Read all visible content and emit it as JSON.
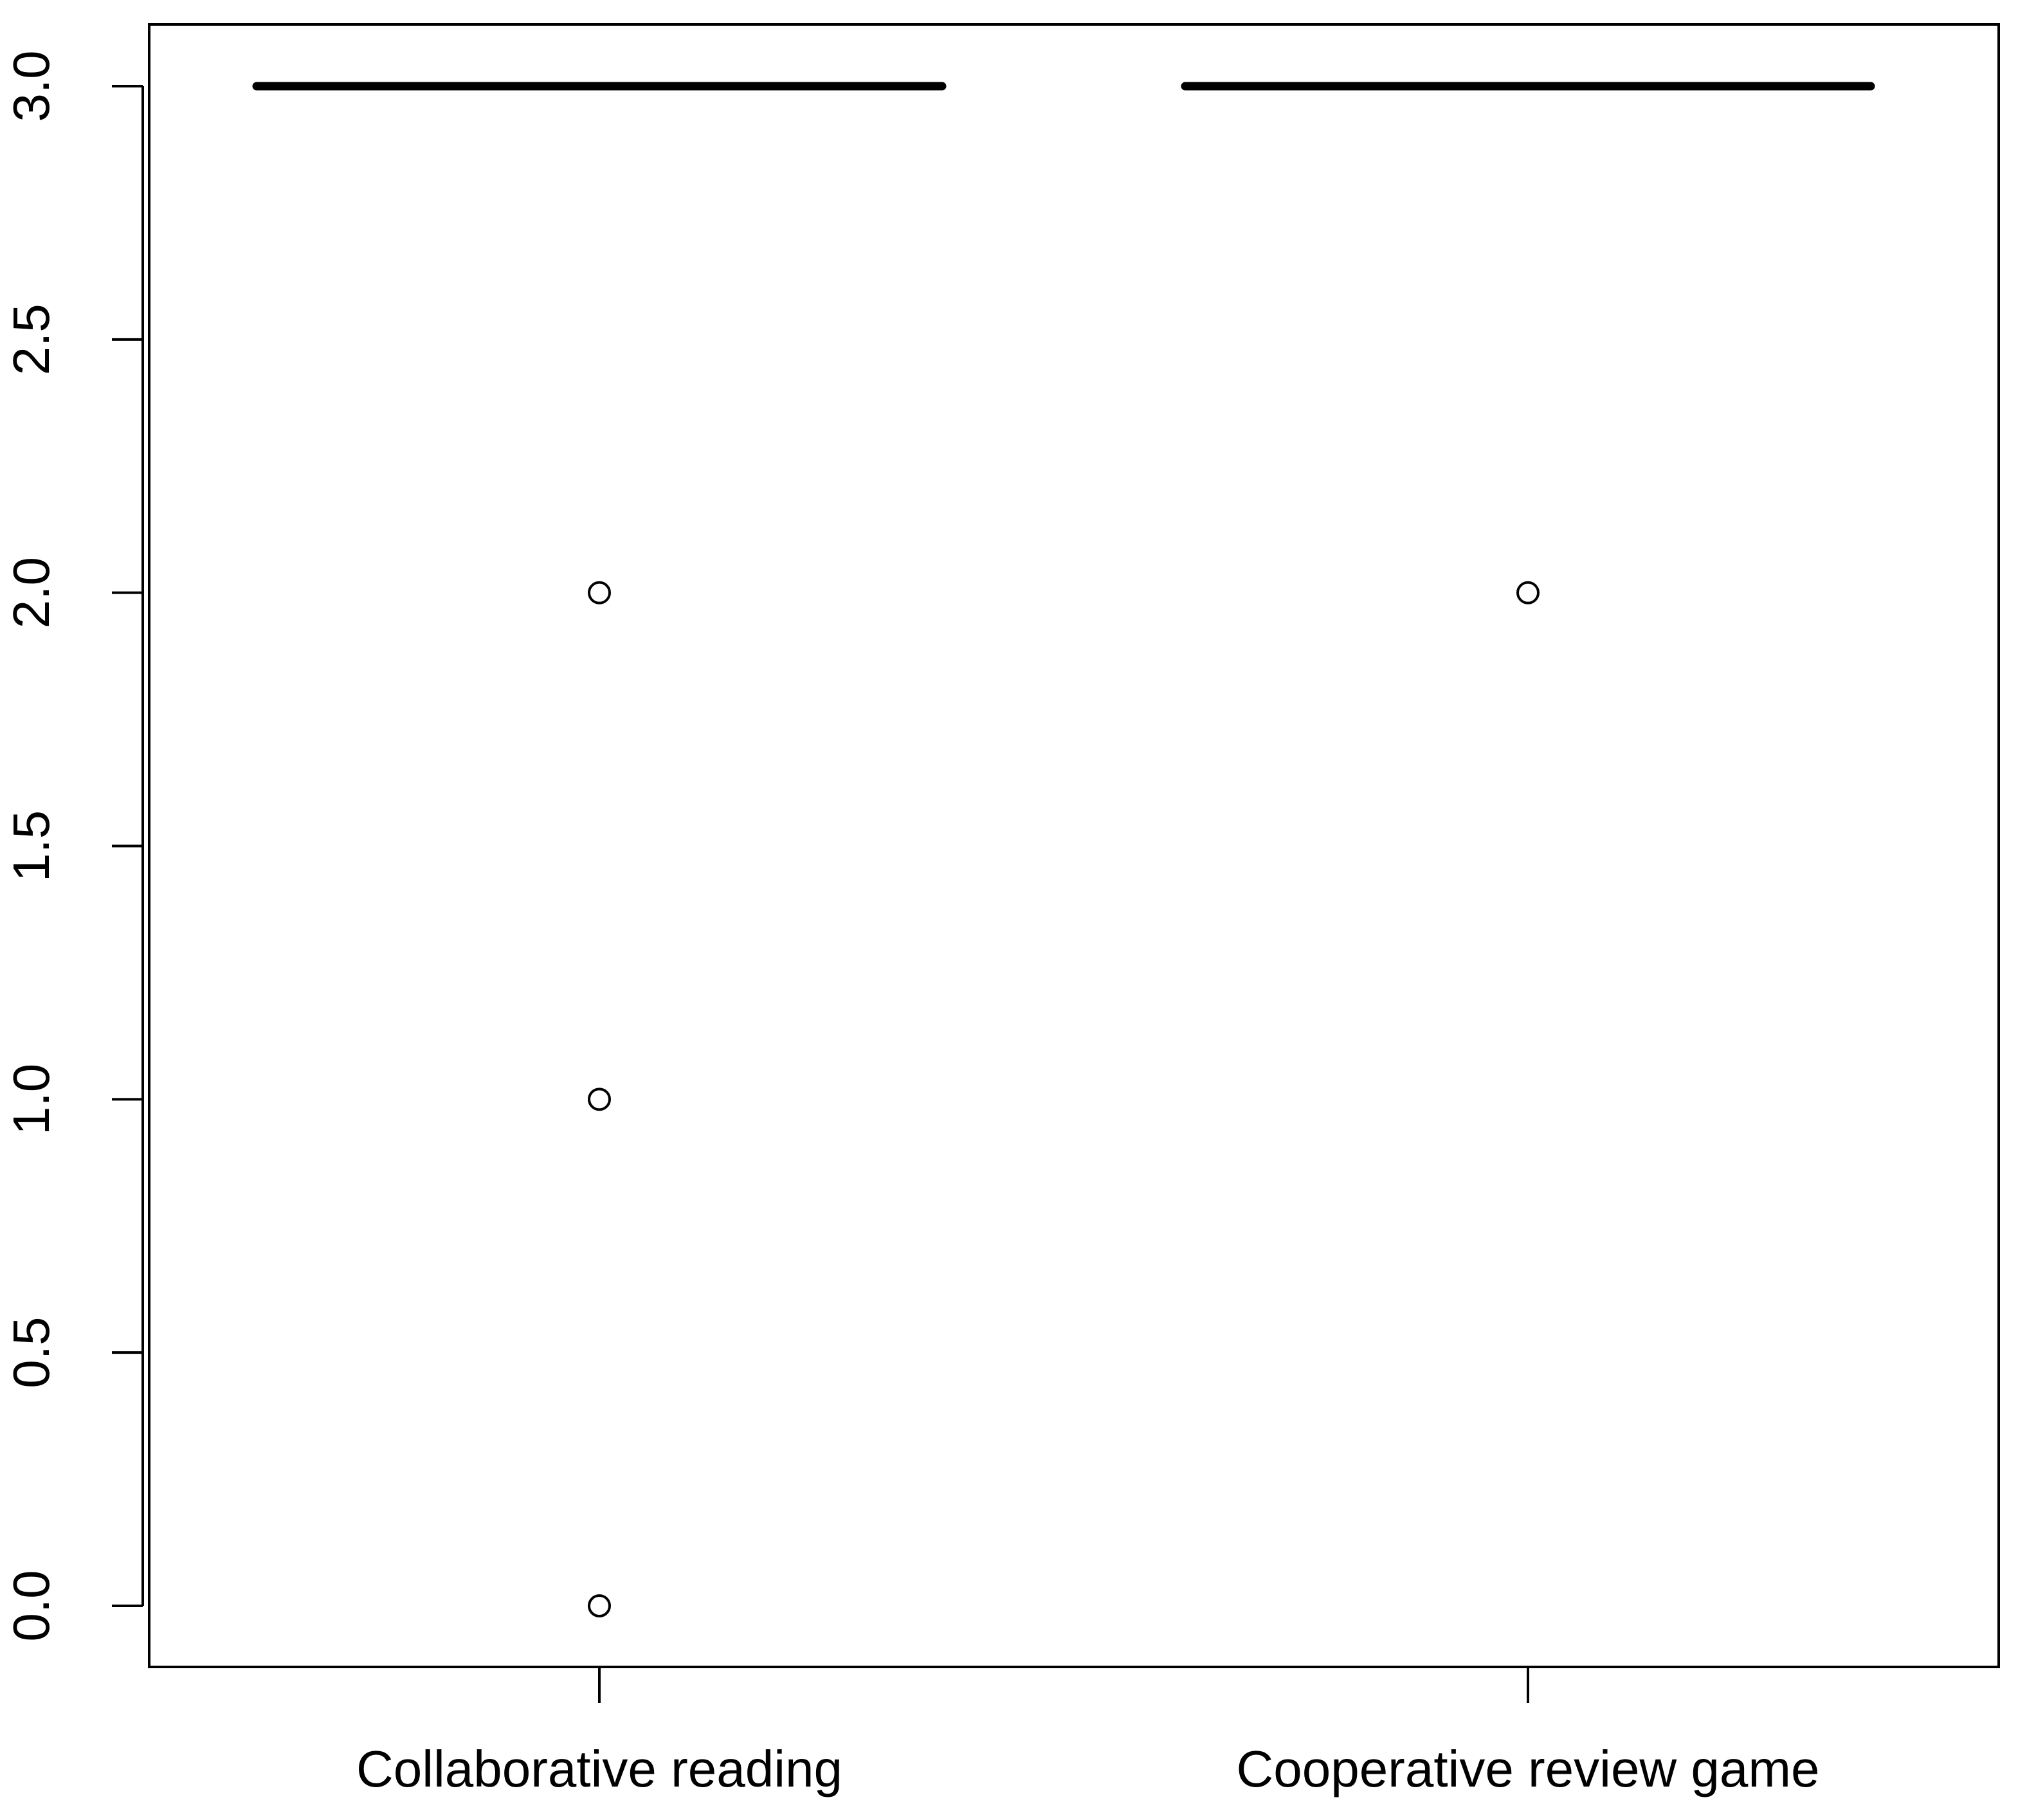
{
  "chart_data": {
    "type": "box",
    "categories": [
      "Collaborative reading",
      "Cooperative review game"
    ],
    "series": [
      {
        "category": "Collaborative reading",
        "min": 3,
        "q1": 3,
        "median": 3,
        "q3": 3,
        "max": 3,
        "outliers": [
          2,
          1,
          0
        ]
      },
      {
        "category": "Cooperative review game",
        "min": 3,
        "q1": 3,
        "median": 3,
        "q3": 3,
        "max": 3,
        "outliers": [
          2
        ]
      }
    ],
    "yticks": [
      "0.0",
      "0.5",
      "1.0",
      "1.5",
      "2.0",
      "2.5",
      "3.0"
    ],
    "ylim": [
      -0.12,
      3.12
    ],
    "title": "",
    "xlabel": "",
    "ylabel": "",
    "grid": false,
    "colors": {
      "box": "#000000",
      "background": "#ffffff"
    }
  }
}
